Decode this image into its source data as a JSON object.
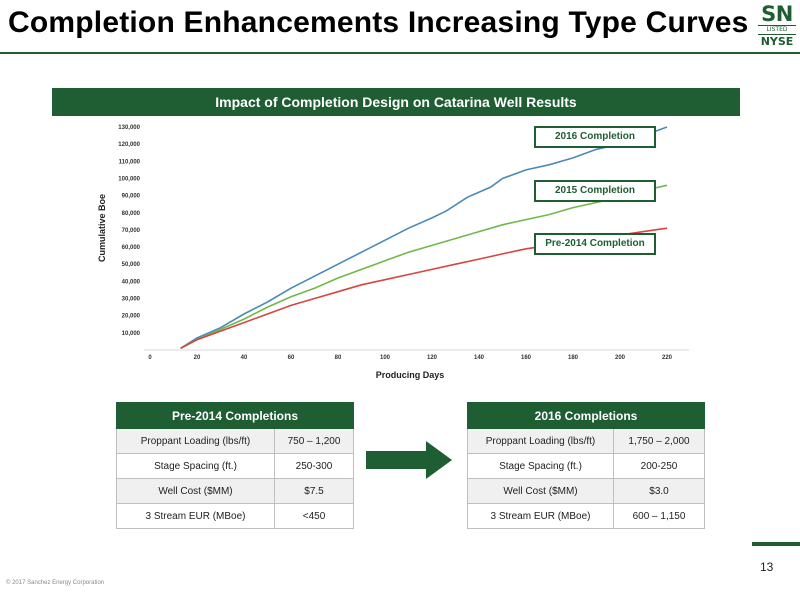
{
  "header": {
    "title": "Completion Enhancements Increasing Type Curves",
    "logo": {
      "sn": "SN",
      "listed": "LISTED",
      "exchange": "NYSE"
    }
  },
  "banner": {
    "title": "Impact of Completion Design on Catarina Well Results"
  },
  "chart_data": {
    "type": "line",
    "title": "",
    "xlabel": "Producing Days",
    "ylabel": "Cumulative Boe",
    "xlim": [
      0,
      220
    ],
    "ylim": [
      0,
      130000
    ],
    "xticks": [
      0,
      20,
      40,
      60,
      80,
      100,
      120,
      140,
      160,
      180,
      200,
      220
    ],
    "yticks": [
      10000,
      20000,
      30000,
      40000,
      50000,
      60000,
      70000,
      80000,
      90000,
      100000,
      110000,
      120000,
      130000
    ],
    "xtick_labels": [
      "0",
      "20",
      "40",
      "60",
      "80",
      "100",
      "120",
      "140",
      "160",
      "180",
      "200",
      "220"
    ],
    "ytick_labels": [
      "10,000",
      "20,000",
      "30,000",
      "40,000",
      "50,000",
      "60,000",
      "70,000",
      "80,000",
      "90,000",
      "100,000",
      "110,000",
      "120,000",
      "130,000"
    ],
    "grid": false,
    "legend": "callout labels on right",
    "series": [
      {
        "name": "2016 Completion",
        "color": "#4a8ab5",
        "x": [
          13,
          20,
          30,
          40,
          50,
          60,
          70,
          80,
          90,
          100,
          110,
          120,
          126,
          135,
          145,
          150,
          160,
          170,
          180,
          190,
          200,
          210,
          220
        ],
        "y": [
          1000,
          7000,
          13000,
          21000,
          28000,
          36000,
          43000,
          50000,
          57000,
          64000,
          71000,
          77000,
          81000,
          89000,
          95000,
          100000,
          105000,
          108000,
          112000,
          117000,
          120000,
          125000,
          130000
        ]
      },
      {
        "name": "2015 Completion",
        "color": "#6fb84a",
        "x": [
          13,
          20,
          30,
          40,
          50,
          60,
          70,
          80,
          90,
          100,
          110,
          120,
          130,
          140,
          150,
          160,
          170,
          180,
          190,
          200,
          210,
          220
        ],
        "y": [
          1000,
          6000,
          12000,
          18000,
          25000,
          31000,
          36000,
          42000,
          47000,
          52000,
          57000,
          61000,
          65000,
          69000,
          73000,
          76000,
          79000,
          83000,
          86000,
          89000,
          93000,
          96000
        ]
      },
      {
        "name": "Pre-2014 Completion",
        "color": "#d64540",
        "x": [
          13,
          20,
          30,
          40,
          50,
          60,
          70,
          80,
          90,
          100,
          110,
          120,
          130,
          140,
          150,
          160,
          170,
          180,
          190,
          200,
          210,
          220
        ],
        "y": [
          1000,
          6000,
          11000,
          16000,
          21000,
          26000,
          30000,
          34000,
          38000,
          41000,
          44000,
          47000,
          50000,
          53000,
          56000,
          59000,
          61000,
          63000,
          65000,
          67000,
          69000,
          71000
        ]
      }
    ]
  },
  "tables": {
    "left": {
      "title": "Pre-2014 Completions",
      "rows": [
        {
          "label": "Proppant Loading (lbs/ft)",
          "value": "750 – 1,200"
        },
        {
          "label": "Stage Spacing (ft.)",
          "value": "250-300"
        },
        {
          "label": "Well Cost ($MM)",
          "value": "$7.5"
        },
        {
          "label": "3 Stream EUR (MBoe)",
          "value": "<450"
        }
      ]
    },
    "right": {
      "title": "2016 Completions",
      "rows": [
        {
          "label": "Proppant Loading (lbs/ft)",
          "value": "1,750 – 2,000"
        },
        {
          "label": "Stage Spacing (ft.)",
          "value": "200-250"
        },
        {
          "label": "Well Cost ($MM)",
          "value": "$3.0"
        },
        {
          "label": "3 Stream EUR (MBoe)",
          "value": "600 – 1,150"
        }
      ]
    }
  },
  "arrow": {
    "icon": "right-arrow-icon",
    "color": "#1f5e33"
  },
  "footer": {
    "page_number": "13",
    "copyright": "© 2017 Sanchez Energy Corporation"
  },
  "colors": {
    "brand": "#1f5e33"
  }
}
